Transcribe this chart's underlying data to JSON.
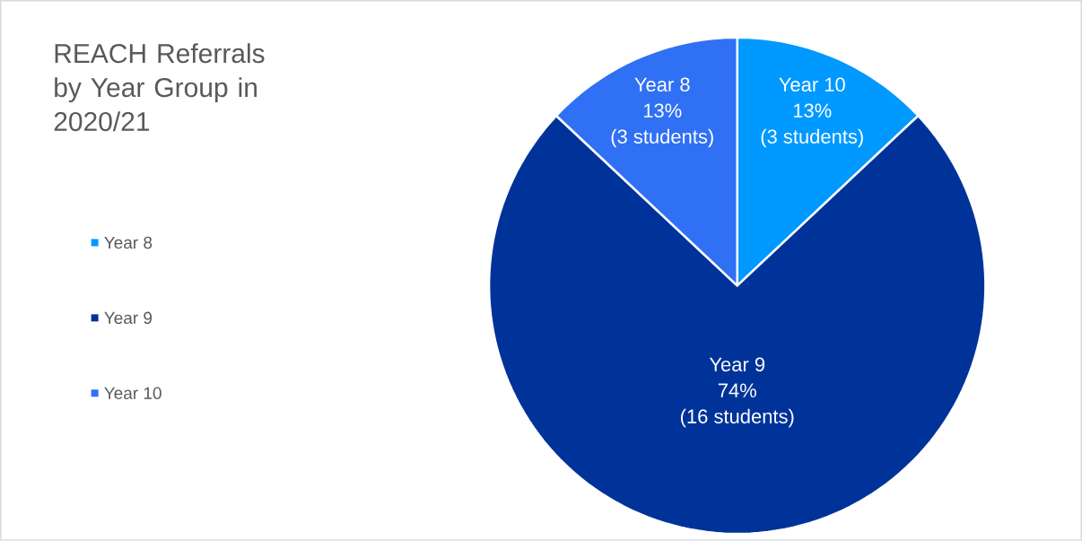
{
  "chart_data": {
    "type": "pie",
    "title": "REACH Referrals by Year Group in 2020/21",
    "categories": [
      "Year 8",
      "Year 9",
      "Year 10"
    ],
    "values": [
      13,
      74,
      13
    ],
    "colors": [
      "#0099ff",
      "#003399",
      "#3070f5"
    ],
    "value_labels": [
      "13%",
      "74%",
      "13%"
    ],
    "annotations": [
      "Year 10",
      "(3 students)",
      "Year 9",
      "(16 students)",
      "Year 8",
      "(3 students)"
    ],
    "legend": "left"
  }
}
